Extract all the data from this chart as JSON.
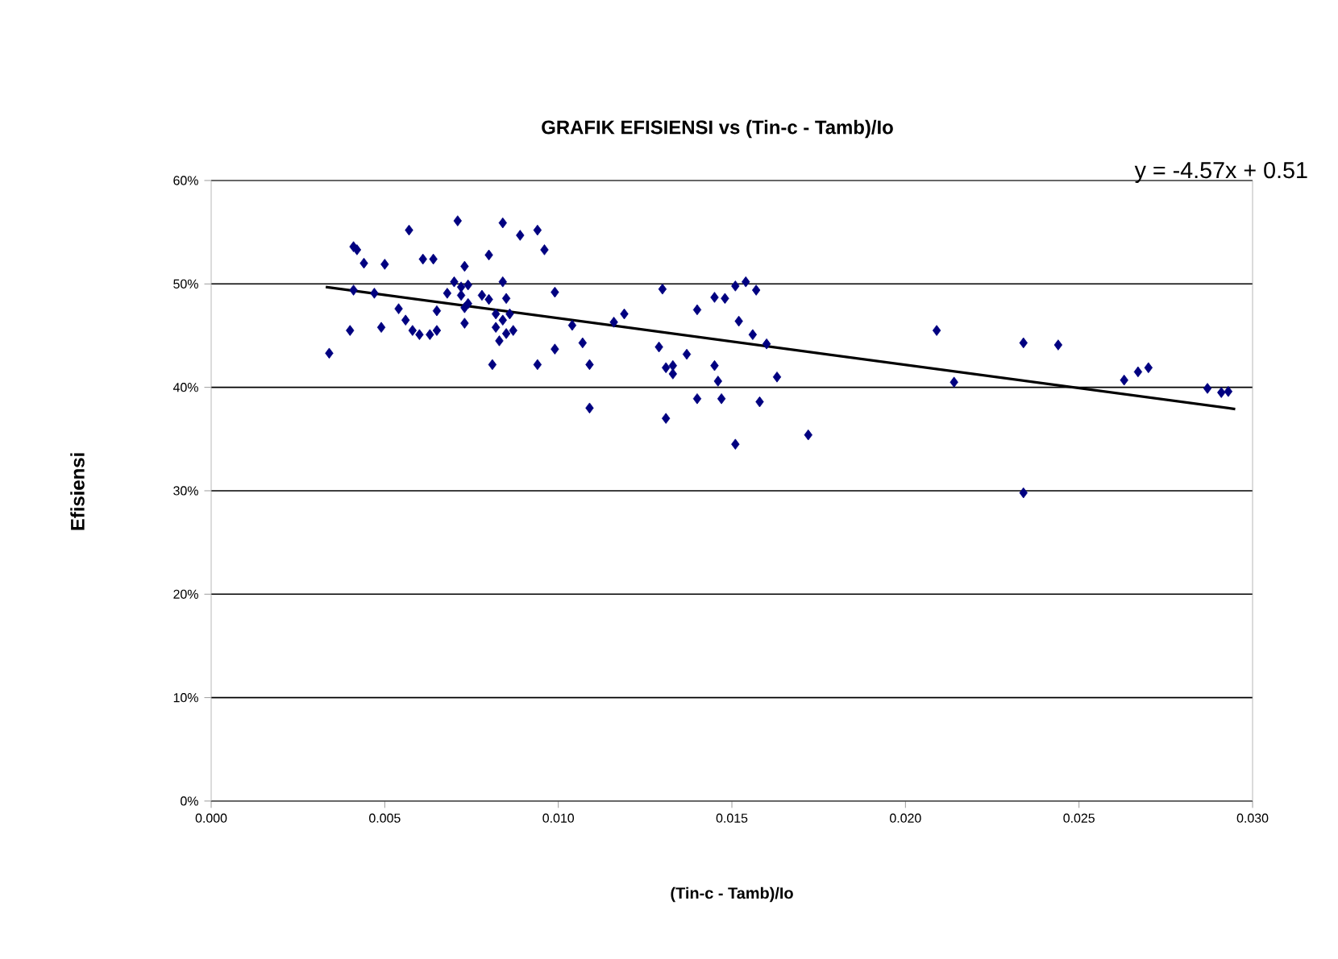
{
  "chart_data": {
    "type": "scatter",
    "title": "GRAFIK EFISIENSI vs (Tin-c - Tamb)/Io",
    "xlabel": "(Tin-c - Tamb)/Io",
    "ylabel": "Efisiensi",
    "annotations": [
      "y = -4.57x + 0.51"
    ],
    "xlim": [
      0,
      0.03
    ],
    "ylim": [
      0,
      0.6
    ],
    "xticks": [
      {
        "value": 0,
        "label": "0.000"
      },
      {
        "value": 0.005,
        "label": "0.005"
      },
      {
        "value": 0.01,
        "label": "0.010"
      },
      {
        "value": 0.015,
        "label": "0.015"
      },
      {
        "value": 0.02,
        "label": "0.020"
      },
      {
        "value": 0.025,
        "label": "0.025"
      },
      {
        "value": 0.03,
        "label": "0.030"
      }
    ],
    "yticks": [
      {
        "value": 0,
        "label": "0%"
      },
      {
        "value": 0.1,
        "label": "10%"
      },
      {
        "value": 0.2,
        "label": "20%"
      },
      {
        "value": 0.3,
        "label": "30%"
      },
      {
        "value": 0.4,
        "label": "40%"
      },
      {
        "value": 0.5,
        "label": "50%"
      },
      {
        "value": 0.6,
        "label": "60%"
      }
    ],
    "grid": "y",
    "series": [
      {
        "color": "#000080",
        "marker": "diamond",
        "x": [
          0.0034,
          0.0041,
          0.0042,
          0.0044,
          0.0041,
          0.004,
          0.0047,
          0.0049,
          0.005,
          0.0057,
          0.0054,
          0.0056,
          0.0058,
          0.006,
          0.0061,
          0.0064,
          0.0065,
          0.0063,
          0.0065,
          0.0071,
          0.0073,
          0.007,
          0.0072,
          0.0074,
          0.0072,
          0.0068,
          0.0073,
          0.0074,
          0.0073,
          0.0078,
          0.008,
          0.008,
          0.0084,
          0.0089,
          0.0094,
          0.0096,
          0.0084,
          0.0085,
          0.0082,
          0.0084,
          0.0086,
          0.0082,
          0.0085,
          0.0087,
          0.0083,
          0.0081,
          0.0094,
          0.0099,
          0.0099,
          0.0104,
          0.0107,
          0.0109,
          0.0109,
          0.0116,
          0.0119,
          0.013,
          0.0129,
          0.0131,
          0.0133,
          0.0133,
          0.0131,
          0.0137,
          0.014,
          0.0145,
          0.0148,
          0.0151,
          0.0154,
          0.0157,
          0.0152,
          0.0156,
          0.016,
          0.0145,
          0.0146,
          0.0163,
          0.014,
          0.0147,
          0.0158,
          0.0151,
          0.0172,
          0.0209,
          0.0214,
          0.0234,
          0.0244,
          0.0234,
          0.0263,
          0.0267,
          0.027,
          0.0287,
          0.0291,
          0.0293
        ],
        "values": [
          0.433,
          0.536,
          0.533,
          0.52,
          0.494,
          0.455,
          0.491,
          0.458,
          0.519,
          0.552,
          0.476,
          0.465,
          0.455,
          0.451,
          0.524,
          0.524,
          0.474,
          0.451,
          0.455,
          0.561,
          0.517,
          0.502,
          0.497,
          0.499,
          0.489,
          0.491,
          0.477,
          0.481,
          0.462,
          0.489,
          0.485,
          0.528,
          0.559,
          0.547,
          0.552,
          0.533,
          0.502,
          0.486,
          0.471,
          0.465,
          0.471,
          0.458,
          0.452,
          0.455,
          0.445,
          0.422,
          0.422,
          0.437,
          0.492,
          0.46,
          0.443,
          0.422,
          0.38,
          0.463,
          0.471,
          0.495,
          0.439,
          0.419,
          0.413,
          0.421,
          0.37,
          0.432,
          0.475,
          0.487,
          0.486,
          0.498,
          0.502,
          0.494,
          0.464,
          0.451,
          0.442,
          0.421,
          0.406,
          0.41,
          0.389,
          0.389,
          0.386,
          0.345,
          0.354,
          0.455,
          0.405,
          0.443,
          0.441,
          0.298,
          0.407,
          0.415,
          0.419,
          0.399,
          0.395,
          0.396
        ]
      },
      {
        "type": "line",
        "color": "#000000",
        "marker": "none",
        "x": [
          0.0033,
          0.0295
        ],
        "values": [
          0.497,
          0.379
        ]
      }
    ]
  }
}
